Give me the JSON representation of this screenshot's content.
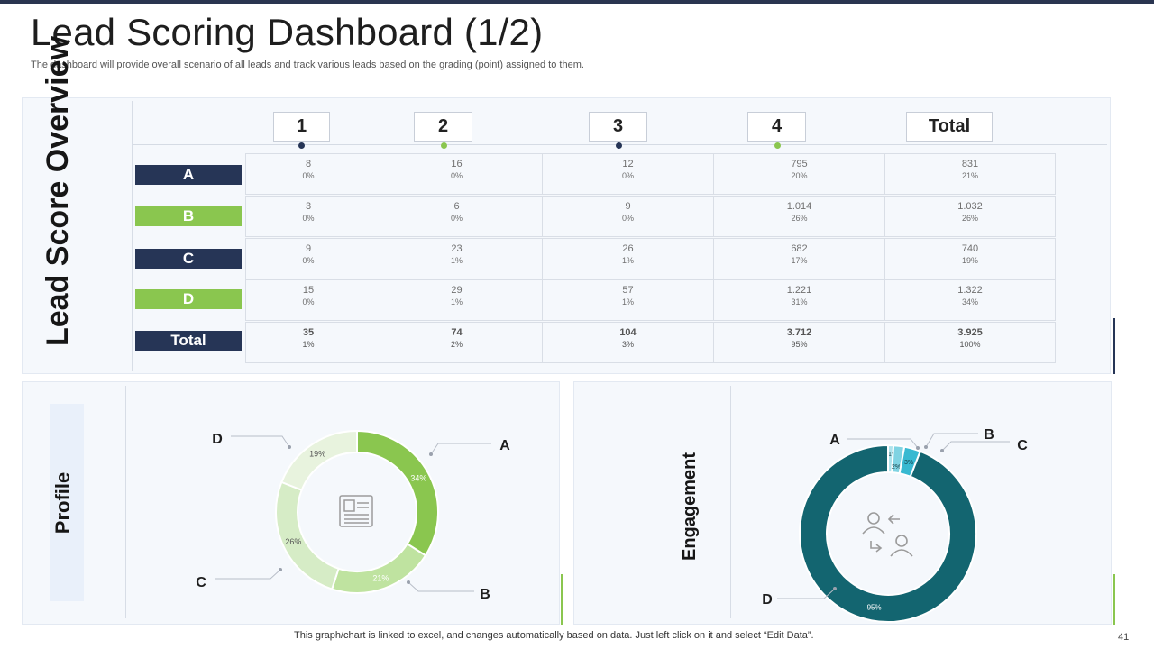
{
  "title": "Lead Scoring Dashboard (1/2)",
  "subtitle": "The dashboard will provide overall scenario of all leads and track various leads based on the grading (point) assigned to them.",
  "footer": "This graph/chart is linked to excel, and changes automatically based on data. Just left click on it and select “Edit Data”.",
  "page_number": "41",
  "colors": {
    "navy": "#263556",
    "green": "#8ac64f",
    "teal": "#136570"
  },
  "lead_score": {
    "label": "Lead Score Overview",
    "columns": [
      "1",
      "2",
      "3",
      "4",
      "Total"
    ],
    "rows": [
      {
        "label": "A",
        "color": "navy",
        "cells": [
          {
            "v": "8",
            "p": "0%"
          },
          {
            "v": "16",
            "p": "0%"
          },
          {
            "v": "12",
            "p": "0%"
          },
          {
            "v": "795",
            "p": "20%"
          },
          {
            "v": "831",
            "p": "21%"
          }
        ]
      },
      {
        "label": "B",
        "color": "green",
        "cells": [
          {
            "v": "3",
            "p": "0%"
          },
          {
            "v": "6",
            "p": "0%"
          },
          {
            "v": "9",
            "p": "0%"
          },
          {
            "v": "1.014",
            "p": "26%"
          },
          {
            "v": "1.032",
            "p": "26%"
          }
        ]
      },
      {
        "label": "C",
        "color": "navy",
        "cells": [
          {
            "v": "9",
            "p": "0%"
          },
          {
            "v": "23",
            "p": "1%"
          },
          {
            "v": "26",
            "p": "1%"
          },
          {
            "v": "682",
            "p": "17%"
          },
          {
            "v": "740",
            "p": "19%"
          }
        ]
      },
      {
        "label": "D",
        "color": "green",
        "cells": [
          {
            "v": "15",
            "p": "0%"
          },
          {
            "v": "29",
            "p": "1%"
          },
          {
            "v": "57",
            "p": "1%"
          },
          {
            "v": "1.221",
            "p": "31%"
          },
          {
            "v": "1.322",
            "p": "34%"
          }
        ]
      },
      {
        "label": "Total",
        "color": "navy",
        "cells": [
          {
            "v": "35",
            "p": "1%"
          },
          {
            "v": "74",
            "p": "2%"
          },
          {
            "v": "104",
            "p": "3%"
          },
          {
            "v": "3.712",
            "p": "95%"
          },
          {
            "v": "3.925",
            "p": "100%"
          }
        ]
      }
    ]
  },
  "profile": {
    "label": "Profile",
    "icon": "id-card-icon"
  },
  "engagement": {
    "label": "Engagement",
    "icon": "user-swap-icon"
  },
  "chart_data": [
    {
      "type": "pie",
      "variant": "donut",
      "title": "",
      "categories": [
        "A",
        "B",
        "C",
        "D"
      ],
      "values": [
        34,
        21,
        26,
        19
      ],
      "labels": [
        "34%",
        "21%",
        "26%",
        "19%"
      ],
      "colors": [
        "#8ac64f",
        "#bfe3a0",
        "#d6ecc6",
        "#e8f3de"
      ]
    },
    {
      "type": "pie",
      "variant": "donut",
      "title": "",
      "categories": [
        "A",
        "B",
        "C",
        "D"
      ],
      "values": [
        1,
        2,
        3,
        95
      ],
      "labels": [
        "1%",
        "2%",
        "3%",
        "95%"
      ],
      "colors": [
        "#aee3ec",
        "#7fd3e2",
        "#38b9d1",
        "#136570"
      ]
    }
  ]
}
